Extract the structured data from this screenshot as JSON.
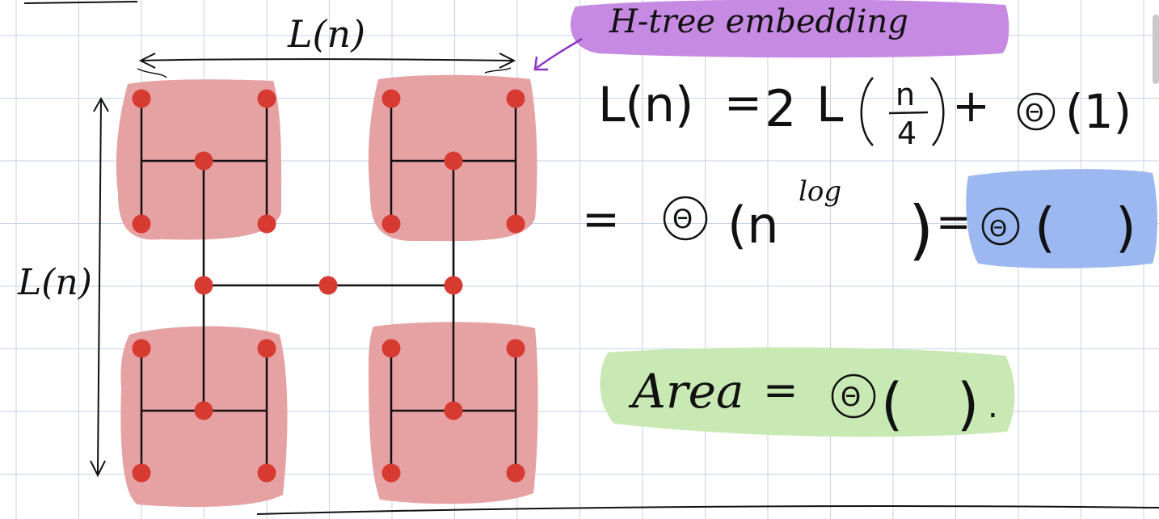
{
  "title": "H-tree embedding",
  "labels": {
    "top_dimension": "L(n)",
    "side_dimension": "L(n)"
  },
  "equations": {
    "recurrence": "L(n) = 2 L(n/4) + Θ(1)",
    "recurrence_lhs": "L(n)",
    "recurrence_eq": "=",
    "recurrence_coeff": "2",
    "recurrence_L": "L",
    "recurrence_frac_num": "n",
    "recurrence_frac_den": "4",
    "recurrence_plus": "+",
    "recurrence_theta": "Θ",
    "recurrence_const": "(1)",
    "solution_eq": "=",
    "solution_theta": "Θ",
    "solution_base": "(n",
    "solution_exp": "log",
    "solution_close": ")",
    "solution_eq2": "=",
    "solution_theta2": "Θ",
    "solution_open2": "(",
    "solution_close2": ")",
    "area_label": "Area",
    "area_eq": "=",
    "area_theta": "Θ",
    "area_open": "(",
    "area_close": ")",
    "area_period": "."
  },
  "colors": {
    "grid": "#c8d1e6",
    "leaf_highlight": "#e6a1a3",
    "node": "#d63a31",
    "edge": "#111111",
    "title_highlight": "#c68ae2",
    "arrow": "#8e32c4",
    "result_highlight": "#9bb8f0",
    "area_highlight": "#c8e8b4"
  }
}
